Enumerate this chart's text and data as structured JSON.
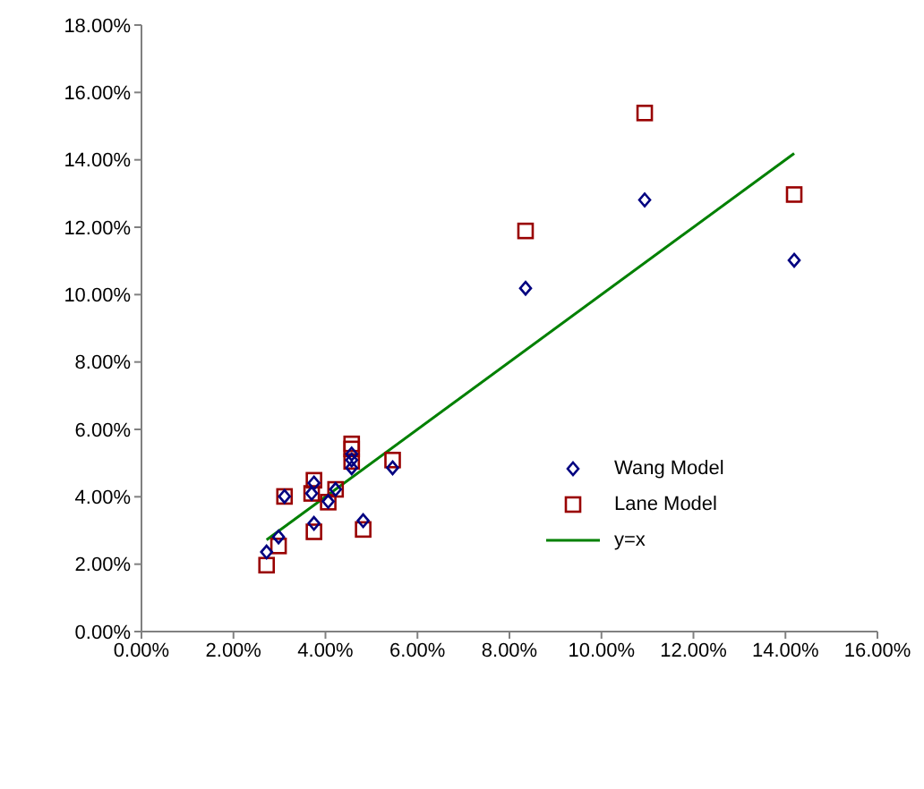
{
  "chart_data": {
    "type": "scatter",
    "series": [
      {
        "name": "Wang Model",
        "color": "#000080",
        "marker": "diamond",
        "x": [
          2.72,
          2.98,
          3.11,
          3.75,
          3.7,
          3.75,
          4.06,
          4.22,
          4.57,
          4.57,
          4.57,
          4.82,
          5.46,
          8.35,
          10.94,
          14.19
        ],
        "values": [
          2.36,
          2.81,
          4.01,
          4.41,
          4.1,
          3.21,
          3.86,
          4.22,
          5.27,
          5.09,
          4.86,
          3.29,
          4.86,
          10.19,
          12.81,
          11.02
        ]
      },
      {
        "name": "Lane Model",
        "color": "#990000",
        "marker": "square",
        "x": [
          2.72,
          2.98,
          3.11,
          3.75,
          3.7,
          3.75,
          4.06,
          4.22,
          4.57,
          4.57,
          4.57,
          4.82,
          5.46,
          8.35,
          10.94,
          14.19
        ],
        "values": [
          1.97,
          2.54,
          4.01,
          4.49,
          4.1,
          2.96,
          3.84,
          4.22,
          5.57,
          5.42,
          5.05,
          3.03,
          5.09,
          11.89,
          15.39,
          12.97
        ]
      },
      {
        "name": "y=x",
        "type": "line",
        "color": "#008000",
        "marker": "none",
        "x": [
          2.72,
          14.19
        ],
        "values": [
          2.72,
          14.19
        ]
      }
    ],
    "xlim": [
      0,
      16
    ],
    "ylim": [
      0,
      18
    ],
    "xticks": [
      {
        "value": 0,
        "label": "0.00%"
      },
      {
        "value": 2,
        "label": "2.00%"
      },
      {
        "value": 4,
        "label": "4.00%"
      },
      {
        "value": 6,
        "label": "6.00%"
      },
      {
        "value": 8,
        "label": "8.00%"
      },
      {
        "value": 10,
        "label": "10.00%"
      },
      {
        "value": 12,
        "label": "12.00%"
      },
      {
        "value": 14,
        "label": "14.00%"
      },
      {
        "value": 16,
        "label": "16.00%"
      }
    ],
    "yticks": [
      {
        "value": 0,
        "label": "0.00%"
      },
      {
        "value": 2,
        "label": "2.00%"
      },
      {
        "value": 4,
        "label": "4.00%"
      },
      {
        "value": 6,
        "label": "6.00%"
      },
      {
        "value": 8,
        "label": "8.00%"
      },
      {
        "value": 10,
        "label": "10.00%"
      },
      {
        "value": 12,
        "label": "12.00%"
      },
      {
        "value": 14,
        "label": "14.00%"
      },
      {
        "value": 16,
        "label": "16.00%"
      },
      {
        "value": 18,
        "label": "18.00%"
      }
    ],
    "grid": false,
    "legend": "right"
  }
}
